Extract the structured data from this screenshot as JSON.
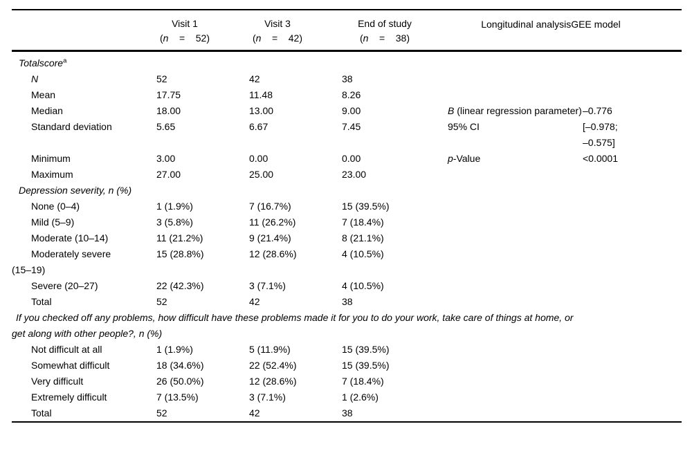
{
  "colors": {
    "text": "#000000",
    "background": "#ffffff",
    "rules": "#000000"
  },
  "table": {
    "header": {
      "visit1": {
        "title": "Visit 1",
        "n_open": "(",
        "n_italic": "n",
        "n_rest": "    =    52)"
      },
      "visit3": {
        "title": "Visit 3",
        "n_open": "(",
        "n_italic": "n",
        "n_rest": "    =    42)"
      },
      "end_of_study": {
        "title": "End of study",
        "n_open": "(",
        "n_italic": "n",
        "n_rest": "    =    38)"
      },
      "longitudinal": "Longitudinal analysisGEE model"
    },
    "rows": [
      {
        "label": "Totalscore",
        "sup": "a"
      },
      {
        "label": "N",
        "v1": "52",
        "v3": "42",
        "eos": "38"
      },
      {
        "label": "Mean",
        "v1": "17.75",
        "v3": "11.48",
        "eos": "8.26"
      },
      {
        "label": "Median",
        "v1": "18.00",
        "v3": "13.00",
        "eos": "9.00",
        "gee": {
          "pre": "B",
          "post": " (linear regression parameter)",
          "value": "–0.776"
        }
      },
      {
        "label": "Standard deviation",
        "v1": "5.65",
        "v3": "6.67",
        "eos": "7.45",
        "gee": {
          "label": "95% CI",
          "value": "[–0.978;\n–0.575]"
        }
      },
      {
        "label": "Minimum",
        "v1": "3.00",
        "v3": "0.00",
        "eos": "0.00",
        "gee": {
          "pre": "p",
          "post": "-Value",
          "value": "<0.0001"
        }
      },
      {
        "label": "Maximum",
        "v1": "27.00",
        "v3": "25.00",
        "eos": "23.00"
      },
      {
        "label": "Depression severity, n (%)"
      },
      {
        "label": "None (0–4)",
        "v1": "1 (1.9%)",
        "v3": "7 (16.7%)",
        "eos": "15 (39.5%)"
      },
      {
        "label": "Mild (5–9)",
        "v1": "3 (5.8%)",
        "v3": "11 (26.2%)",
        "eos": "7 (18.4%)"
      },
      {
        "label": "Moderate (10–14)",
        "v1": "11 (21.2%)",
        "v3": "9 (21.4%)",
        "eos": "8 (21.1%)"
      },
      {
        "label": "Moderately severe\n(15–19)",
        "v1": "15 (28.8%)",
        "v3": "12 (28.6%)",
        "eos": "4 (10.5%)"
      },
      {
        "label": "Severe (20–27)",
        "v1": "22 (42.3%)",
        "v3": "3 (7.1%)",
        "eos": "4 (10.5%)"
      },
      {
        "label": "Total",
        "v1": "52",
        "v3": "42",
        "eos": "38"
      },
      {
        "label": "If you checked off any problems, how difficult have these problems made it for you to do your work, take care of things at home, or\nget along with other people?, n (%)"
      },
      {
        "label": "Not difficult at all",
        "v1": "1 (1.9%)",
        "v3": "5 (11.9%)",
        "eos": "15 (39.5%)"
      },
      {
        "label": "Somewhat difficult",
        "v1": "18 (34.6%)",
        "v3": "22 (52.4%)",
        "eos": "15 (39.5%)"
      },
      {
        "label": "Very difficult",
        "v1": "26 (50.0%)",
        "v3": "12 (28.6%)",
        "eos": "7 (18.4%)"
      },
      {
        "label": "Extremely difficult",
        "v1": "7 (13.5%)",
        "v3": "3 (7.1%)",
        "eos": "1 (2.6%)"
      },
      {
        "label": "Total",
        "v1": "52",
        "v3": "42",
        "eos": "38"
      }
    ]
  }
}
